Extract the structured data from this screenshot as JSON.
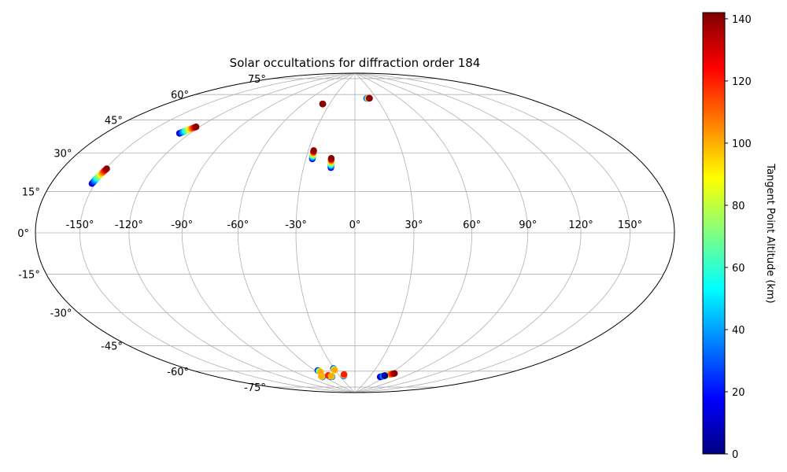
{
  "chart_data": {
    "type": "scatter",
    "projection": "hammer",
    "title": "Solar occultations for diffraction order 184",
    "xlabel": "",
    "ylabel": "",
    "grid": true,
    "x_ticks": [
      "-150°",
      "-120°",
      "-90°",
      "-60°",
      "-30°",
      "0°",
      "30°",
      "60°",
      "90°",
      "120°",
      "150°"
    ],
    "x_tick_values": [
      -150,
      -120,
      -90,
      -60,
      -30,
      0,
      30,
      60,
      90,
      120,
      150
    ],
    "y_ticks": [
      "75°",
      "60°",
      "45°",
      "30°",
      "15°",
      "0°",
      "-15°",
      "-30°",
      "-45°",
      "-60°",
      "-75°"
    ],
    "y_tick_values": [
      75,
      60,
      45,
      30,
      15,
      0,
      -15,
      -30,
      -45,
      -60,
      -75
    ],
    "xlim": [
      -180,
      180
    ],
    "ylim": [
      -90,
      90
    ],
    "colorbar": {
      "label": "Tangent Point Altitude (km)",
      "colormap": "jet",
      "range": [
        0,
        142
      ],
      "ticks": [
        "0",
        "20",
        "40",
        "60",
        "80",
        "100",
        "120",
        "140"
      ],
      "tick_values": [
        0,
        20,
        40,
        60,
        80,
        100,
        120,
        140
      ]
    },
    "series": [
      {
        "lon_start": -152.0,
        "lat_start": 20.0,
        "lon_end": -149.5,
        "lat_end": 26.5,
        "alt_start": 10,
        "alt_end": 140
      },
      {
        "lon_start": -127.5,
        "lat_start": 45.5,
        "lon_end": -122.5,
        "lat_end": 49.5,
        "alt_start": 10,
        "alt_end": 140
      },
      {
        "lon_start": -38.0,
        "lat_start": 69.0,
        "lon_end": -38.0,
        "lat_end": 69.0,
        "alt_start": 140,
        "alt_end": 140
      },
      {
        "lon_start": 16.5,
        "lat_start": 73.0,
        "lon_end": 20.5,
        "lat_end": 73.0,
        "alt_start": 10,
        "alt_end": 140
      },
      {
        "lon_start": -26.0,
        "lat_start": 38.0,
        "lon_end": -26.5,
        "lat_end": 42.5,
        "alt_start": 10,
        "alt_end": 140
      },
      {
        "lon_start": -14.0,
        "lat_start": 33.5,
        "lon_end": -14.5,
        "lat_end": 38.5,
        "alt_start": 10,
        "alt_end": 140
      },
      {
        "lon_start": -64.0,
        "lat_start": -78.0,
        "lon_end": -64.0,
        "lat_end": -77.5,
        "alt_start": 10,
        "alt_end": 100
      },
      {
        "lon_start": -56.0,
        "lat_start": -74.0,
        "lon_end": -55.0,
        "lat_end": -75.0,
        "alt_start": 5,
        "alt_end": 100
      },
      {
        "lon_start": -50.0,
        "lat_start": -78.5,
        "lon_end": -50.0,
        "lat_end": -77.5,
        "alt_start": 10,
        "alt_end": 120
      },
      {
        "lon_start": -46.0,
        "lat_start": -78.5,
        "lon_end": -46.0,
        "lat_end": -78.0,
        "alt_start": 10,
        "alt_end": 100
      },
      {
        "lon_start": -31.0,
        "lat_start": -73.5,
        "lon_end": -31.0,
        "lat_end": -74.5,
        "alt_start": 5,
        "alt_end": 100
      },
      {
        "lon_start": -22.0,
        "lat_start": -78.5,
        "lon_end": -20.0,
        "lat_end": -77.5,
        "alt_start": 10,
        "alt_end": 120
      },
      {
        "lon_start": 51.0,
        "lat_start": -78.5,
        "lon_end": 66.0,
        "lat_end": -75.5,
        "alt_start": 5,
        "alt_end": 140
      },
      {
        "lon_start": 56.0,
        "lat_start": -77.5,
        "lon_end": 56.0,
        "lat_end": -77.5,
        "alt_start": 5,
        "alt_end": 5
      }
    ]
  }
}
